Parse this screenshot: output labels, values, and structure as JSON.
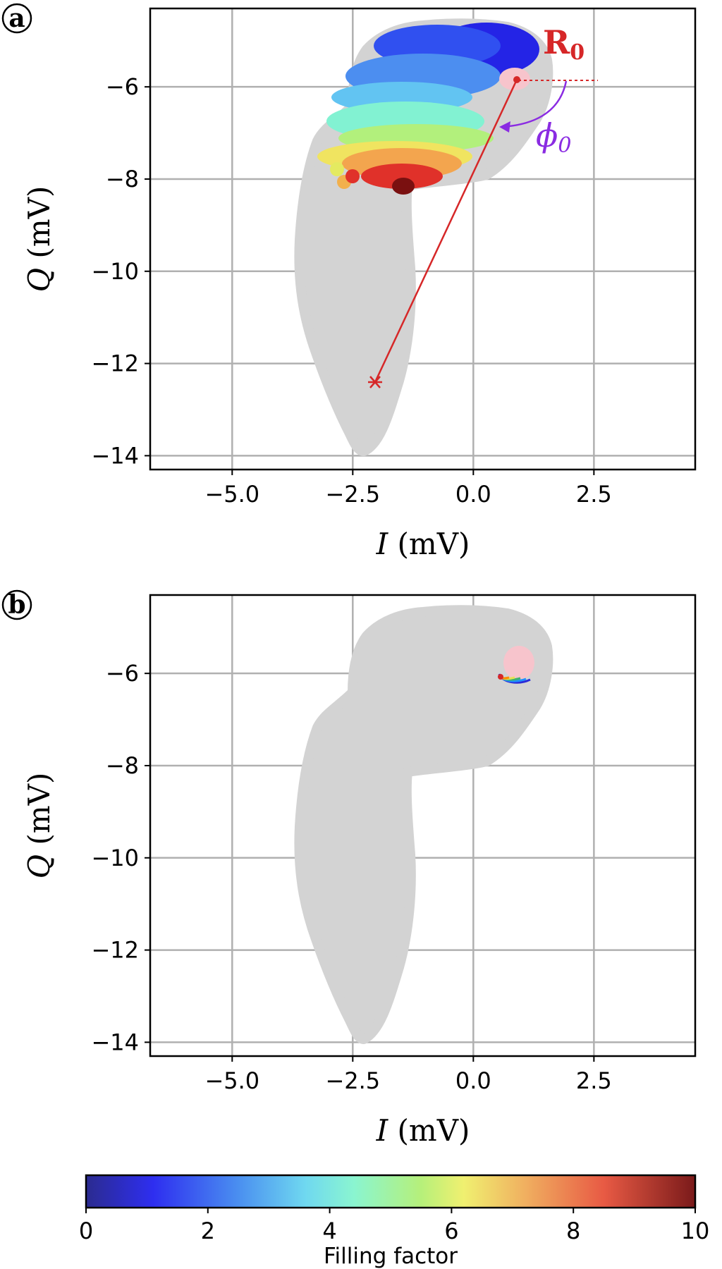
{
  "chart_data": [
    {
      "type": "scatter",
      "panel": "a",
      "xlabel": "I (mV)",
      "ylabel": "Q (mV)",
      "xlim": [
        -6.7,
        4.6
      ],
      "ylim": [
        -14.3,
        -4.3
      ],
      "xticks": [
        -5.0,
        -2.5,
        0.0,
        2.5
      ],
      "xtick_labels": [
        "−5.0",
        "−2.5",
        "0.0",
        "2.5"
      ],
      "yticks": [
        -14,
        -12,
        -10,
        -8,
        -6
      ],
      "ytick_labels": [
        "−14",
        "−12",
        "−10",
        "−8",
        "−6"
      ],
      "grid": true,
      "background_region": {
        "color": "#d3d3d3",
        "description_points": [
          [
            -2.2,
            -13.8
          ],
          [
            -1.7,
            -12.0
          ],
          [
            -1.3,
            -10.0
          ],
          [
            -1.2,
            -8.6
          ],
          [
            0.2,
            -8.0
          ],
          [
            1.3,
            -6.7
          ],
          [
            1.6,
            -5.5
          ],
          [
            1.0,
            -4.8
          ],
          [
            -1.8,
            -4.9
          ],
          [
            -2.4,
            -5.6
          ],
          [
            -2.4,
            -6.7
          ],
          [
            -3.2,
            -7.5
          ],
          [
            -3.6,
            -8.8
          ],
          [
            -3.8,
            -10.2
          ],
          [
            -3.4,
            -12.0
          ],
          [
            -2.7,
            -13.4
          ]
        ]
      },
      "colored_points_by_filling_factor": [
        {
          "band": "0-2",
          "color": "#2b2bd8",
          "center": [
            0.3,
            -5.3
          ],
          "extent_x": [
            -1.8,
            1.5
          ]
        },
        {
          "band": "2-3",
          "color": "#58a6f0",
          "center": [
            -1.0,
            -5.9
          ],
          "extent_x": [
            -2.4,
            0.8
          ]
        },
        {
          "band": "3-5",
          "color": "#7ae8c8",
          "center": [
            -0.9,
            -6.9
          ],
          "extent_x": [
            -2.6,
            0.8
          ]
        },
        {
          "band": "5-7",
          "color": "#e8e054",
          "center": [
            -1.2,
            -7.6
          ],
          "extent_x": [
            -2.9,
            0.3
          ]
        },
        {
          "band": "7-9",
          "color": "#e85a30",
          "center": [
            -1.4,
            -7.9
          ],
          "extent_x": [
            -2.8,
            -0.5
          ]
        },
        {
          "band": "9-10",
          "color": "#7a1010",
          "center": [
            -1.4,
            -8.1
          ],
          "extent_x": [
            -1.6,
            -1.2
          ]
        }
      ],
      "annotations": [
        {
          "label": "R0",
          "text": "R",
          "subscript": "0",
          "color": "#d62728",
          "point": [
            1.05,
            -5.83
          ],
          "end": [
            -2.05,
            -12.42
          ]
        },
        {
          "label": "phi0",
          "text": "ϕ",
          "subscript": "0",
          "color": "#8a2be2"
        }
      ]
    },
    {
      "type": "scatter",
      "panel": "b",
      "xlabel": "I (mV)",
      "ylabel": "Q (mV)",
      "xlim": [
        -6.7,
        4.6
      ],
      "ylim": [
        -14.3,
        -4.3
      ],
      "xticks": [
        -5.0,
        -2.5,
        0.0,
        2.5
      ],
      "xtick_labels": [
        "−5.0",
        "−2.5",
        "0.0",
        "2.5"
      ],
      "yticks": [
        -14,
        -12,
        -10,
        -8,
        -6
      ],
      "ytick_labels": [
        "−14",
        "−12",
        "−10",
        "−8",
        "−6"
      ],
      "grid": true,
      "background_region": {
        "color": "#d3d3d3"
      },
      "highlight_disk": {
        "color": "#f7c4cc",
        "center": [
          1.05,
          -5.7
        ],
        "radius": 0.32
      },
      "rim_points": {
        "center": [
          0.95,
          -6.02
        ],
        "width": 0.65,
        "colors": [
          "#d62728",
          "#ff8c00",
          "#e8e054",
          "#3cb371",
          "#1e90ff",
          "#2b2bd8"
        ]
      }
    }
  ],
  "colorbar": {
    "label": "Filling factor",
    "min": 0,
    "max": 10,
    "ticks": [
      "0",
      "2",
      "4",
      "6",
      "8",
      "10"
    ],
    "colormap": "jet"
  },
  "panel_labels": [
    "a",
    "b"
  ],
  "colors": {
    "grid": "#b0b0b0",
    "region": "#d3d3d3",
    "r0": "#d62728",
    "phi": "#8a2be2",
    "pink": "#f7c4cc"
  }
}
